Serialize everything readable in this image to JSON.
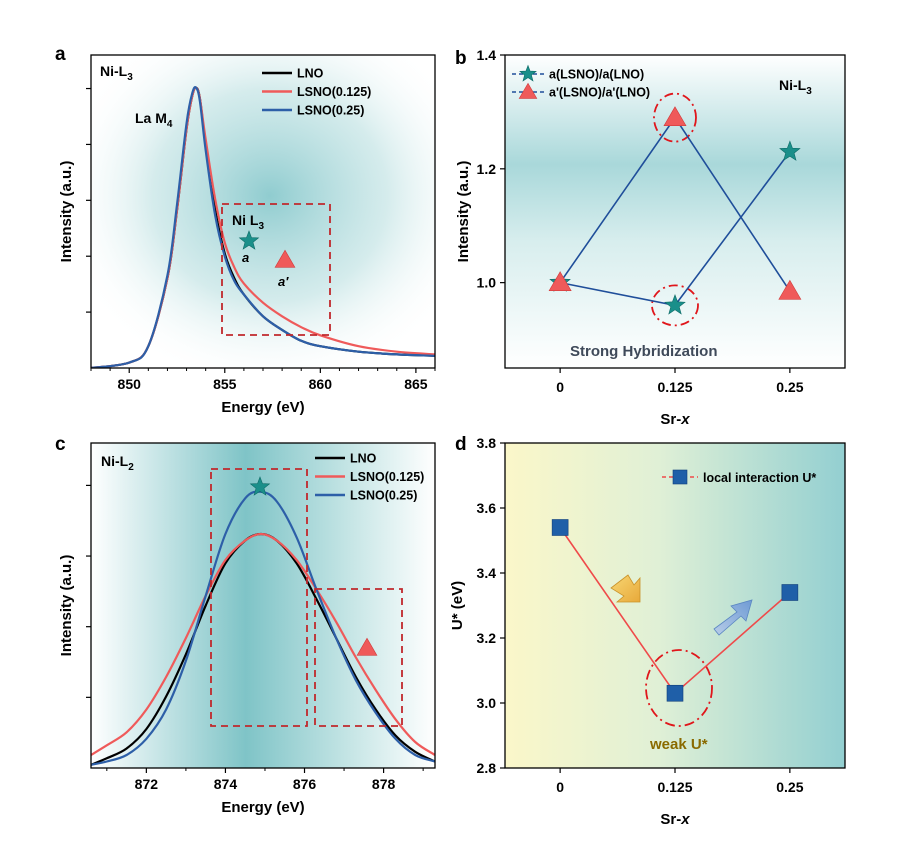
{
  "colors": {
    "black": "#000000",
    "red": "#ef5a5a",
    "blue": "#2d5fa8",
    "teal": "#1a8f8a",
    "triangle": "#ef5a5a",
    "star": "#1a8f8a",
    "square": "#1f5fa8",
    "box": "#c0282c",
    "weak": "#8a6a00",
    "hybrid": "#3f4a5a"
  },
  "panels": {
    "a": {
      "letter": "a",
      "label_main": "Ni-L",
      "label_sub": "3"
    },
    "b": {
      "letter": "b",
      "label_main": "Ni-L",
      "label_sub": "3"
    },
    "c": {
      "letter": "c",
      "label_main": "Ni-L",
      "label_sub": "2"
    },
    "d": {
      "letter": "d"
    }
  },
  "annotations": {
    "la_main": "La M",
    "la_sub": "4",
    "nil3_main": "Ni L",
    "nil3_sub": "3",
    "a_mark": "a",
    "aprime_mark": "a′",
    "strong": "Strong Hybridization",
    "weak": "weak U*"
  },
  "chart_data": [
    {
      "id": "a",
      "type": "line",
      "title": "",
      "xlabel": "Energy (eV)",
      "ylabel": "Intensity (a.u.)",
      "xlim": [
        848,
        866
      ],
      "ylim": [
        0,
        1.15
      ],
      "xticks": [
        850,
        855,
        860,
        865
      ],
      "yticks_unlabeled": 5,
      "legend": "top-right",
      "series": [
        {
          "name": "LNO",
          "color_key": "black",
          "x": [
            848,
            850,
            851,
            852,
            852.5,
            853,
            853.3,
            853.5,
            853.7,
            854,
            854.5,
            855,
            855.5,
            856,
            857,
            858,
            859,
            860,
            862,
            864,
            866
          ],
          "y": [
            0.0,
            0.02,
            0.08,
            0.33,
            0.58,
            0.88,
            1.0,
            1.03,
            0.99,
            0.82,
            0.58,
            0.42,
            0.33,
            0.27,
            0.19,
            0.14,
            0.1,
            0.08,
            0.06,
            0.05,
            0.045
          ]
        },
        {
          "name": "LSNO(0.125)",
          "color_key": "red",
          "x": [
            848,
            850,
            851,
            852,
            852.5,
            853,
            853.3,
            853.5,
            853.7,
            854,
            854.5,
            855,
            855.5,
            856,
            857,
            858,
            859,
            860,
            862,
            864,
            866
          ],
          "y": [
            0.0,
            0.02,
            0.08,
            0.33,
            0.58,
            0.88,
            1.0,
            1.03,
            0.99,
            0.84,
            0.62,
            0.46,
            0.37,
            0.31,
            0.24,
            0.19,
            0.15,
            0.12,
            0.08,
            0.06,
            0.05
          ]
        },
        {
          "name": "LSNO(0.25)",
          "color_key": "blue",
          "x": [
            848,
            850,
            851,
            852,
            852.5,
            853,
            853.3,
            853.5,
            853.7,
            854,
            854.5,
            855,
            855.5,
            856,
            857,
            858,
            859,
            860,
            862,
            864,
            866
          ],
          "y": [
            0.0,
            0.02,
            0.08,
            0.34,
            0.6,
            0.9,
            1.01,
            1.03,
            0.98,
            0.8,
            0.56,
            0.41,
            0.32,
            0.27,
            0.19,
            0.14,
            0.1,
            0.08,
            0.06,
            0.05,
            0.045
          ]
        }
      ]
    },
    {
      "id": "b",
      "type": "scatter",
      "title": "",
      "xlabel": "Sr-x",
      "ylabel": "Intensity (a.u.)",
      "categories": [
        "0",
        "0.125",
        "0.25"
      ],
      "x": [
        0,
        0.125,
        0.25
      ],
      "xlim": [
        -0.06,
        0.31
      ],
      "ylim": [
        0.85,
        1.4
      ],
      "yticks": [
        "1.0",
        "1.2",
        "1.4"
      ],
      "legend": "top-left",
      "series": [
        {
          "name": "a(LSNO)/a(LNO)",
          "marker": "star",
          "values": [
            1.0,
            0.96,
            1.23
          ]
        },
        {
          "name": "a'(LSNO)/a'(LNO)",
          "marker": "triangle",
          "values": [
            1.0,
            1.29,
            0.985
          ]
        }
      ]
    },
    {
      "id": "c",
      "type": "line",
      "title": "",
      "xlabel": "Energy (eV)",
      "ylabel": "Intensity (a.u.)",
      "xlim": [
        870.6,
        879.3
      ],
      "ylim": [
        0,
        1.0
      ],
      "xticks": [
        872,
        874,
        876,
        878
      ],
      "yticks_unlabeled": 4,
      "legend": "top-right",
      "series": [
        {
          "name": "LNO",
          "color_key": "black",
          "x": [
            870.6,
            871,
            871.5,
            872,
            872.5,
            873,
            873.5,
            874,
            874.5,
            874.9,
            875.3,
            875.8,
            876.3,
            876.8,
            877.3,
            877.8,
            878.3,
            878.8,
            879.3
          ],
          "y": [
            0.01,
            0.03,
            0.06,
            0.12,
            0.22,
            0.35,
            0.5,
            0.63,
            0.7,
            0.72,
            0.7,
            0.63,
            0.52,
            0.4,
            0.28,
            0.18,
            0.1,
            0.05,
            0.02
          ]
        },
        {
          "name": "LSNO(0.125)",
          "color_key": "red",
          "x": [
            870.6,
            871,
            871.5,
            872,
            872.5,
            873,
            873.5,
            874,
            874.5,
            874.9,
            875.3,
            875.8,
            876.3,
            876.8,
            877.3,
            877.8,
            878.3,
            878.8,
            879.3
          ],
          "y": [
            0.04,
            0.07,
            0.11,
            0.18,
            0.28,
            0.4,
            0.53,
            0.64,
            0.7,
            0.72,
            0.7,
            0.64,
            0.55,
            0.45,
            0.34,
            0.24,
            0.15,
            0.08,
            0.04
          ]
        },
        {
          "name": "LSNO(0.25)",
          "color_key": "blue",
          "x": [
            870.6,
            871,
            871.5,
            872,
            872.5,
            873,
            873.5,
            874,
            874.5,
            874.9,
            875.3,
            875.8,
            876.3,
            876.8,
            877.3,
            877.8,
            878.3,
            878.8,
            879.3
          ],
          "y": [
            0.01,
            0.02,
            0.04,
            0.09,
            0.18,
            0.33,
            0.53,
            0.72,
            0.83,
            0.85,
            0.82,
            0.71,
            0.55,
            0.4,
            0.27,
            0.17,
            0.09,
            0.04,
            0.02
          ]
        }
      ]
    },
    {
      "id": "d",
      "type": "line",
      "title": "",
      "xlabel": "Sr-x",
      "ylabel": "U* (eV)",
      "categories": [
        "0",
        "0.125",
        "0.25"
      ],
      "x": [
        0,
        0.125,
        0.25
      ],
      "xlim": [
        -0.06,
        0.31
      ],
      "ylim": [
        2.8,
        3.8
      ],
      "yticks": [
        "2.8",
        "3.0",
        "3.2",
        "3.4",
        "3.6",
        "3.8"
      ],
      "legend": "top-right",
      "series": [
        {
          "name": "local interaction U*",
          "marker": "square",
          "values": [
            3.54,
            3.03,
            3.34
          ]
        }
      ]
    }
  ]
}
